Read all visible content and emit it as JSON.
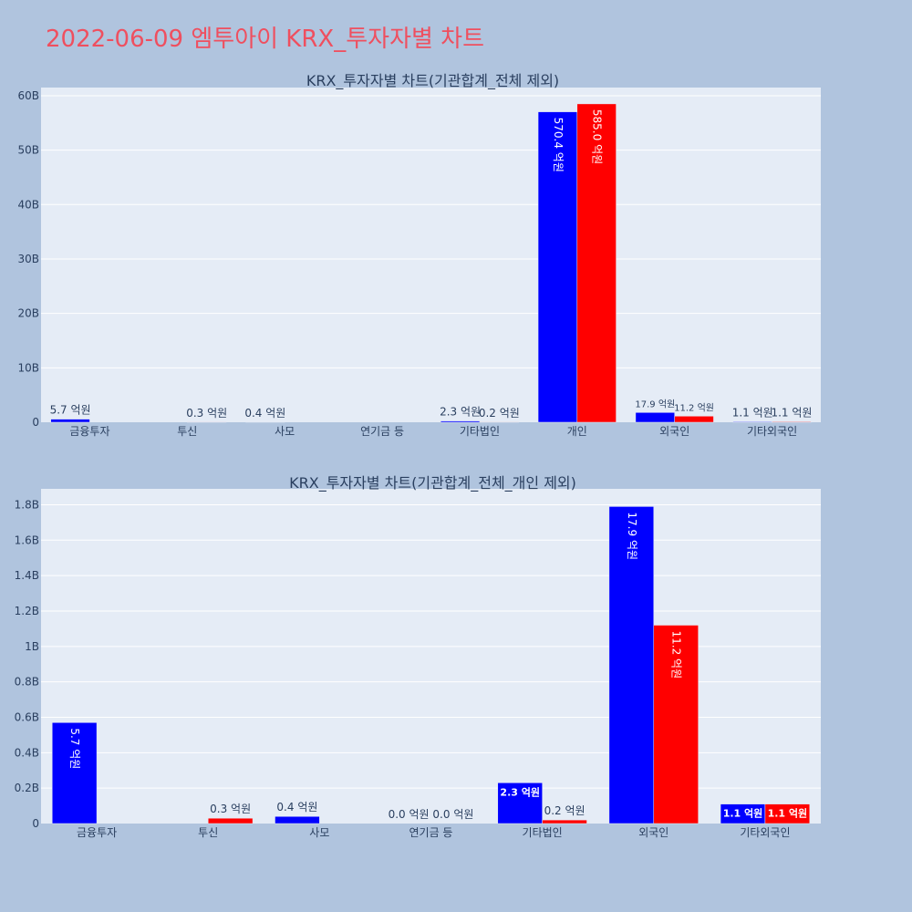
{
  "page": {
    "title": "2022-06-09 엠투아이 KRX_투자자별 차트"
  },
  "colors": {
    "buy": "#0000ff",
    "sell": "#ff0000",
    "plot_bg": "#e5ecf6",
    "paper_bg": "#b0c4de",
    "title": "#ef4f5f"
  },
  "chart_data": [
    {
      "type": "bar",
      "title": "KRX_투자자별 차트(기관합계_전체 제외)",
      "categories": [
        "금융투자",
        "투신",
        "사모",
        "연기금 등",
        "기타법인",
        "개인",
        "외국인",
        "기타외국인"
      ],
      "series": [
        {
          "values": [
            570000000,
            0,
            40000000,
            0,
            230000000,
            57040000000,
            1790000000,
            110000000
          ],
          "labels": [
            "5.7 억원",
            "",
            "0.4 억원",
            "",
            "2.3 억원",
            "570.4 억원",
            "17.9 억원",
            "1.1 억원"
          ]
        },
        {
          "values": [
            0,
            30000000,
            0,
            0,
            20000000,
            58500000000,
            1120000000,
            110000000
          ],
          "labels": [
            "",
            "0.3 억원",
            "",
            "",
            "0.2 억원",
            "585.0 억원",
            "11.2 억원",
            "1.1 억원"
          ]
        }
      ],
      "yticks": [
        "0",
        "10B",
        "20B",
        "30B",
        "40B",
        "50B",
        "60B"
      ],
      "ytick_values": [
        0,
        10000000000,
        20000000000,
        30000000000,
        40000000000,
        50000000000,
        60000000000
      ],
      "ylim": [
        0,
        61500000000
      ],
      "grid": true
    },
    {
      "type": "bar",
      "title": "KRX_투자자별 차트(기관합계_전체_개인 제외)",
      "categories": [
        "금융투자",
        "투신",
        "사모",
        "연기금 등",
        "기타법인",
        "외국인",
        "기타외국인"
      ],
      "series": [
        {
          "values": [
            570000000,
            0,
            40000000,
            0,
            230000000,
            1790000000,
            110000000
          ],
          "labels": [
            "5.7 억원",
            "",
            "0.4 억원",
            "0.0 억원",
            "2.3 억원",
            "17.9 억원",
            "1.1 억원"
          ]
        },
        {
          "values": [
            0,
            30000000,
            0,
            0,
            20000000,
            1120000000,
            110000000
          ],
          "labels": [
            "",
            "0.3 억원",
            "",
            "0.0 억원",
            "0.2 억원",
            "11.2 억원",
            "1.1 억원"
          ]
        }
      ],
      "yticks": [
        "0",
        "0.2B",
        "0.4B",
        "0.6B",
        "0.8B",
        "1B",
        "1.2B",
        "1.4B",
        "1.6B",
        "1.8B"
      ],
      "ytick_values": [
        0,
        200000000,
        400000000,
        600000000,
        800000000,
        1000000000,
        1200000000,
        1400000000,
        1600000000,
        1800000000
      ],
      "ylim": [
        0,
        1890000000
      ],
      "grid": true
    }
  ]
}
